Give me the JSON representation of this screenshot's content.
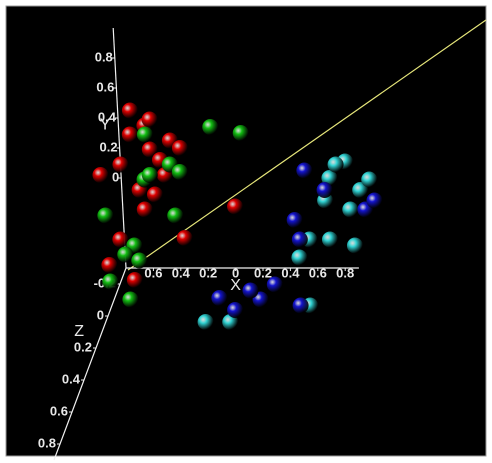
{
  "chart_data": {
    "type": "scatter3d",
    "xlabel": "X",
    "ylabel": "Y",
    "zlabel": "Z",
    "xlim": [
      -0.8,
      0.9
    ],
    "ylim": [
      -0.6,
      1.0
    ],
    "zlim": [
      -0.3,
      0.9
    ],
    "xticks": [
      {
        "value": -0.6,
        "label": "0.6"
      },
      {
        "value": -0.4,
        "label": "0.4"
      },
      {
        "value": -0.2,
        "label": "0.2"
      },
      0,
      0.2,
      0.4,
      0.6,
      0.8
    ],
    "yticks": [
      0,
      0.2,
      0.4,
      0.6,
      0.8
    ],
    "zticks": [
      -0.2,
      0,
      0.2,
      0.4,
      0.6,
      0.8
    ],
    "series": [
      {
        "color": "#e00000",
        "x": [
          -0.46,
          -0.57,
          -0.43,
          -0.36,
          -0.28,
          -0.21,
          -0.33,
          -0.52,
          -0.8,
          -0.65,
          -0.49,
          0.17,
          -0.21,
          -0.77,
          -0.59,
          -0.68,
          -0.42,
          -0.56,
          -0.41
        ],
        "values": [
          0.67,
          0.61,
          0.51,
          0.44,
          0.57,
          0.52,
          0.34,
          0.24,
          0.34,
          0.41,
          0.11,
          0.13,
          -0.08,
          -0.26,
          -0.36,
          -0.09,
          0.71,
          0.77,
          0.21
        ]
      },
      {
        "color": "#12c012",
        "x": [
          0.02,
          0.24,
          -0.46,
          -0.29,
          -0.27,
          -0.48,
          -0.58,
          -0.77,
          -0.63,
          -0.65,
          -0.55,
          -0.78,
          -0.44,
          -0.22
        ],
        "values": [
          0.66,
          0.62,
          0.61,
          0.41,
          0.07,
          0.31,
          -0.13,
          -0.37,
          -0.49,
          -0.19,
          -0.23,
          0.07,
          0.34,
          0.36
        ]
      },
      {
        "color": "#30d4d4",
        "x": [
          0.99,
          0.87,
          1.09,
          1.01,
          1.16,
          0.7,
          0.85,
          1.03,
          0.62,
          0.68,
          -0.09,
          0.09,
          0.92,
          0.83
        ],
        "values": [
          0.43,
          0.32,
          0.24,
          0.11,
          0.31,
          -0.09,
          -0.09,
          -0.13,
          -0.21,
          -0.53,
          -0.64,
          -0.64,
          0.41,
          0.17
        ]
      },
      {
        "color": "#1414d0",
        "x": [
          0.6,
          0.63,
          0.83,
          1.12,
          1.19,
          0.32,
          0.43,
          0.61,
          0.02,
          0.13,
          0.25,
          0.69
        ],
        "values": [
          0.04,
          -0.09,
          0.24,
          0.11,
          0.17,
          -0.49,
          -0.39,
          -0.53,
          -0.48,
          -0.56,
          -0.43,
          0.37
        ]
      }
    ]
  }
}
